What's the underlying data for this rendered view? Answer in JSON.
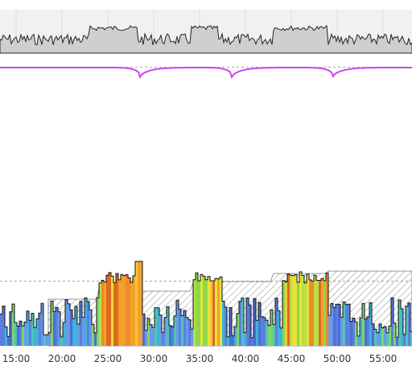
{
  "x_axis": {
    "ticks": [
      "15:00",
      "20:00",
      "25:00",
      "30:00",
      "35:00",
      "40:00",
      "45:00",
      "50:00",
      "55:00"
    ]
  },
  "colors": {
    "top_fill": "#cfcfcf",
    "top_band": "#f0f0f0",
    "top_stroke": "#222222",
    "purple": "#cc44ee",
    "dashed": "#aaaaaa",
    "orange_dash": "#ee8866",
    "hatch": "#888888"
  },
  "chart_data": [
    {
      "type": "area",
      "x_range_min": [
        12,
        63
      ],
      "segments_high_low": [
        {
          "from": 12,
          "to": 23,
          "level": "low"
        },
        {
          "from": 23,
          "to": 28.3,
          "level": "high"
        },
        {
          "from": 28.3,
          "to": 34,
          "level": "low"
        },
        {
          "from": 34,
          "to": 37,
          "level": "high"
        },
        {
          "from": 37,
          "to": 43,
          "level": "low"
        },
        {
          "from": 43,
          "to": 49,
          "level": "high"
        },
        {
          "from": 49,
          "to": 63,
          "level": "low"
        }
      ]
    },
    {
      "type": "line",
      "dips_at_min": [
        28.5,
        38.5,
        49.5
      ]
    },
    {
      "type": "area",
      "x_range_min": [
        12,
        63
      ],
      "intervals_min": [
        [
          24,
          28.6
        ],
        [
          34.2,
          37.2
        ],
        [
          44,
          48.8
        ]
      ]
    }
  ]
}
